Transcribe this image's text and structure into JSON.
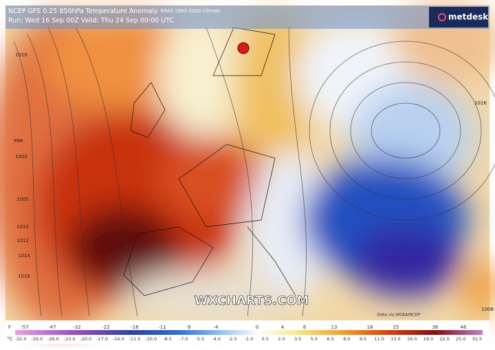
{
  "header": {
    "title": "NCEP GFS 0.25 850hPa Temperature Anomaly",
    "climate": "ERA5 1991-2020 climate",
    "run": "Run: Wed 16 Sep 00Z Valid: Thu 24 Sep 00:00 UTC",
    "brand": "metdesk"
  },
  "map": {
    "watermark": "WXCHARTS.COM",
    "credit": "Data via NOAA/NCEP",
    "isobar_labels": [
      "1010",
      "998",
      "1000",
      "1005",
      "1010",
      "1012",
      "1014",
      "1016",
      "1016",
      "1008"
    ]
  },
  "legend": {
    "f_unit": "F",
    "f_values": [
      "-57",
      "-47",
      "-32",
      "-22",
      "-16",
      "-11",
      "-9",
      "-4",
      "0",
      "4",
      "8",
      "13",
      "18",
      "25",
      "36",
      "46"
    ],
    "c_unit": "°C",
    "c_values": [
      "-32.0",
      "-29.0",
      "-26.0",
      "-23.0",
      "-20.0",
      "-17.0",
      "-14.0",
      "-11.5",
      "-10.0",
      "-8.5",
      "-7.0",
      "-5.5",
      "-4.0",
      "-2.5",
      "-1.0",
      "0.5",
      "2.0",
      "3.5",
      "5.0",
      "6.5",
      "8.0",
      "9.5",
      "11.0",
      "13.0",
      "16.0",
      "19.0",
      "22.0",
      "25.0",
      "31.5"
    ]
  }
}
